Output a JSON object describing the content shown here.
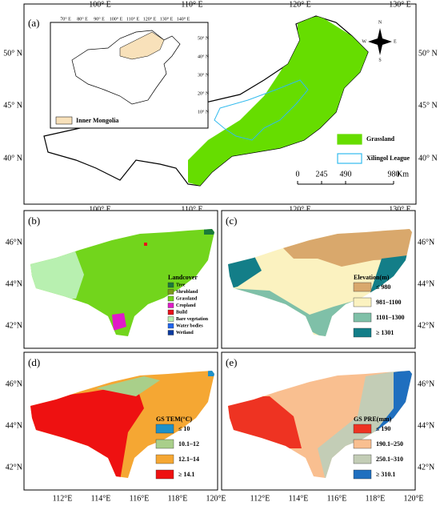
{
  "map_a": {
    "label": "(a)",
    "lon_labels": [
      "100° E",
      "110° E",
      "120° E",
      "130° E"
    ],
    "lat_labels": [
      "50° N",
      "45° N",
      "40° N"
    ],
    "inset": {
      "lon_labels": [
        "70° E",
        "80° E",
        "90° E",
        "100° E",
        "110° E",
        "120° E",
        "130° E",
        "140° E"
      ],
      "lat_labels": [
        "50° N",
        "40° N",
        "30° N",
        "20° N",
        "10° N"
      ],
      "legend": {
        "label": "Inner Mongolia",
        "color": "#f8e1ba"
      }
    },
    "legend": [
      {
        "label": "Grassland",
        "color": "#66dd00"
      },
      {
        "label": "Xilingol League",
        "color": "#33bbee"
      }
    ],
    "scale": {
      "labels": [
        "0",
        "245",
        "490",
        "980"
      ],
      "unit": "Km"
    },
    "compass": [
      "N",
      "E",
      "S",
      "W"
    ]
  },
  "panels": [
    {
      "label": "(b)",
      "legend_title": "Landcover",
      "items": [
        {
          "label": "Tree",
          "color": "#1a7a3a"
        },
        {
          "label": "Shrubland",
          "color": "#7a9a1a"
        },
        {
          "label": "Grassland",
          "color": "#72d51c"
        },
        {
          "label": "Cropland",
          "color": "#e01ac8"
        },
        {
          "label": "Build",
          "color": "#e8101a"
        },
        {
          "label": "Bare vegetation",
          "color": "#b8f0b0"
        },
        {
          "label": "Water bodies",
          "color": "#2266ee"
        },
        {
          "label": "Wetland",
          "color": "#0a3aa0"
        }
      ]
    },
    {
      "label": "(c)",
      "legend_title": "Elevation(m)",
      "items": [
        {
          "label": "≤ 980",
          "color": "#d9a86c"
        },
        {
          "label": "981–1100",
          "color": "#fbf2c0"
        },
        {
          "label": "1101–1300",
          "color": "#7fc0a8"
        },
        {
          "label": "≥ 1301",
          "color": "#137e88"
        }
      ]
    },
    {
      "label": "(d)",
      "legend_title": "GS TEM(°C)",
      "items": [
        {
          "label": "≤ 10",
          "color": "#1e90c8"
        },
        {
          "label": "10.1–12",
          "color": "#a9cf8a"
        },
        {
          "label": "12.1–14",
          "color": "#f5a733"
        },
        {
          "label": "≥ 14.1",
          "color": "#ee1111"
        }
      ]
    },
    {
      "label": "(e)",
      "legend_title": "GS PRE(mm)",
      "items": [
        {
          "label": "≤ 190",
          "color": "#ee3322"
        },
        {
          "label": "190.1–250",
          "color": "#f9bf90"
        },
        {
          "label": "250.1–310",
          "color": "#c3cdb6"
        },
        {
          "label": "≥ 310.1",
          "color": "#1f6fbf"
        }
      ]
    }
  ],
  "lon_labels": [
    "112°E",
    "114°E",
    "116°E",
    "118°E",
    "120°E"
  ],
  "lat_labels": [
    "46°N",
    "44°N",
    "42°N"
  ]
}
